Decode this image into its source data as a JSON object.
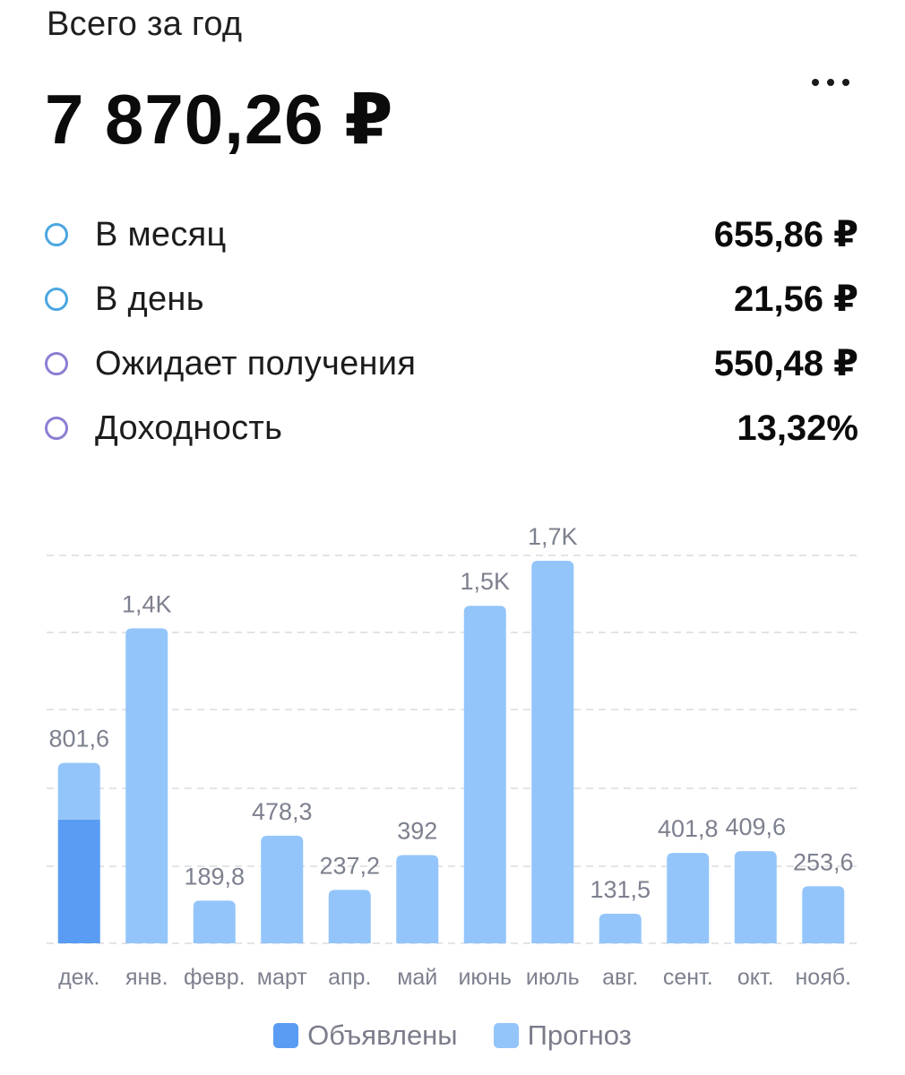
{
  "header": {
    "title": "Всего за год",
    "total": "7 870,26 ₽"
  },
  "stats": [
    {
      "label": "В месяц",
      "value": "655,86 ₽",
      "ring_color": "#4aa6e0"
    },
    {
      "label": "В день",
      "value": "21,56 ₽",
      "ring_color": "#4aa6e0"
    },
    {
      "label": "Ожидает получения",
      "value": "550,48 ₽",
      "ring_color": "#8a7fd4"
    },
    {
      "label": "Доходность",
      "value": "13,32%",
      "ring_color": "#8a7fd4"
    }
  ],
  "menu": {
    "icon": "more-dots-icon"
  },
  "chart_data": {
    "type": "bar",
    "stacked": true,
    "categories": [
      "дек.",
      "янв.",
      "февр.",
      "март",
      "апр.",
      "май",
      "июнь",
      "июль",
      "авг.",
      "сент.",
      "окт.",
      "нояб."
    ],
    "series": [
      {
        "name": "Объявлены",
        "color": "#5a9cf3",
        "values": [
          550,
          0,
          0,
          0,
          0,
          0,
          0,
          0,
          0,
          0,
          0,
          0
        ]
      },
      {
        "name": "Прогноз",
        "color": "#93c5fb",
        "values": [
          251.6,
          1400,
          189.8,
          478.3,
          237.2,
          392,
          1500,
          1700,
          131.5,
          401.8,
          409.6,
          253.6
        ]
      }
    ],
    "data_labels": [
      "801,6",
      "1,4K",
      "189,8",
      "478,3",
      "237,2",
      "392",
      "1,5K",
      "1,7K",
      "131,5",
      "401,8",
      "409,6",
      "253,6"
    ],
    "ylim": [
      0,
      1700
    ],
    "grid": true,
    "legend_position": "bottom"
  }
}
